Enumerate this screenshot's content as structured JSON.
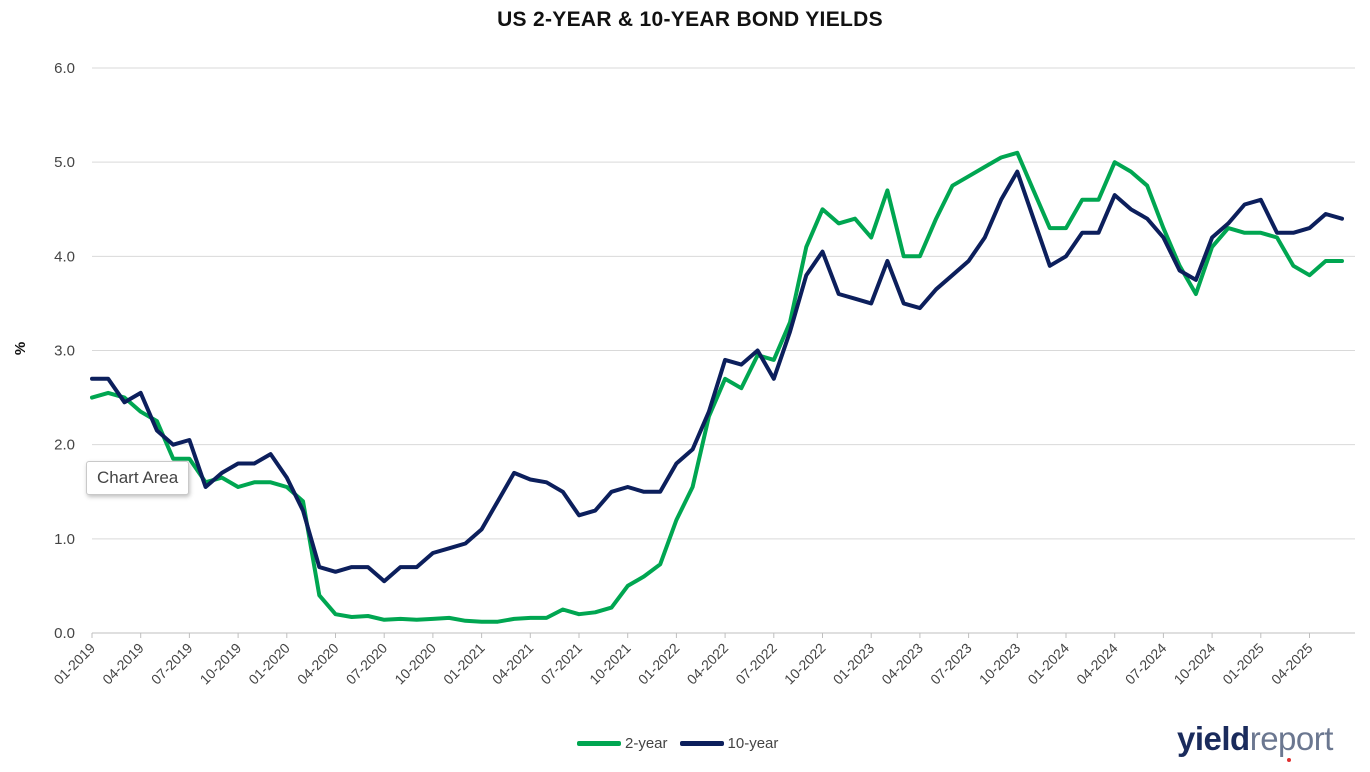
{
  "chart_data": {
    "type": "line",
    "title": "US 2-YEAR & 10-YEAR BOND YIELDS",
    "xlabel": "",
    "ylabel": "%",
    "ylim": [
      0,
      6
    ],
    "yticks": [
      "0.0",
      "1.0",
      "2.0",
      "3.0",
      "4.0",
      "5.0",
      "6.0"
    ],
    "xticks": [
      "01-2019",
      "04-2019",
      "07-2019",
      "10-2019",
      "01-2020",
      "04-2020",
      "07-2020",
      "10-2020",
      "01-2021",
      "04-2021",
      "07-2021",
      "10-2021",
      "01-2022",
      "04-2022",
      "07-2022",
      "10-2022",
      "01-2023",
      "04-2023",
      "07-2023",
      "10-2023",
      "01-2024",
      "04-2024",
      "07-2024",
      "10-2024",
      "01-2025",
      "04-2025"
    ],
    "grid": true,
    "legend_position": "bottom",
    "x": [
      "2019-01",
      "2019-02",
      "2019-03",
      "2019-04",
      "2019-05",
      "2019-06",
      "2019-07",
      "2019-08",
      "2019-09",
      "2019-10",
      "2019-11",
      "2019-12",
      "2020-01",
      "2020-02",
      "2020-03",
      "2020-04",
      "2020-05",
      "2020-06",
      "2020-07",
      "2020-08",
      "2020-09",
      "2020-10",
      "2020-11",
      "2020-12",
      "2021-01",
      "2021-02",
      "2021-03",
      "2021-04",
      "2021-05",
      "2021-06",
      "2021-07",
      "2021-08",
      "2021-09",
      "2021-10",
      "2021-11",
      "2021-12",
      "2022-01",
      "2022-02",
      "2022-03",
      "2022-04",
      "2022-05",
      "2022-06",
      "2022-07",
      "2022-08",
      "2022-09",
      "2022-10",
      "2022-11",
      "2022-12",
      "2023-01",
      "2023-02",
      "2023-03",
      "2023-04",
      "2023-05",
      "2023-06",
      "2023-07",
      "2023-08",
      "2023-09",
      "2023-10",
      "2023-11",
      "2023-12",
      "2024-01",
      "2024-02",
      "2024-03",
      "2024-04",
      "2024-05",
      "2024-06",
      "2024-07",
      "2024-08",
      "2024-09",
      "2024-10",
      "2024-11",
      "2024-12",
      "2025-01",
      "2025-02",
      "2025-03",
      "2025-04",
      "2025-05",
      "2025-06"
    ],
    "series": [
      {
        "name": "2-year",
        "color": "#00a651",
        "values": [
          2.5,
          2.55,
          2.5,
          2.35,
          2.25,
          1.85,
          1.85,
          1.6,
          1.65,
          1.55,
          1.6,
          1.6,
          1.55,
          1.4,
          0.4,
          0.2,
          0.17,
          0.18,
          0.14,
          0.15,
          0.14,
          0.15,
          0.16,
          0.13,
          0.12,
          0.12,
          0.15,
          0.16,
          0.16,
          0.25,
          0.2,
          0.22,
          0.27,
          0.5,
          0.6,
          0.73,
          1.2,
          1.55,
          2.3,
          2.7,
          2.6,
          2.95,
          2.9,
          3.3,
          4.1,
          4.5,
          4.35,
          4.4,
          4.2,
          4.7,
          4.0,
          4.0,
          4.4,
          4.75,
          4.85,
          4.95,
          5.05,
          5.1,
          4.7,
          4.3,
          4.3,
          4.6,
          4.6,
          5.0,
          4.9,
          4.75,
          4.3,
          3.9,
          3.6,
          4.1,
          4.3,
          4.25,
          4.25,
          4.2,
          3.9,
          3.8,
          3.95,
          3.95
        ]
      },
      {
        "name": "10-year",
        "color": "#0c1f5c",
        "values": [
          2.7,
          2.7,
          2.45,
          2.55,
          2.15,
          2.0,
          2.05,
          1.55,
          1.7,
          1.8,
          1.8,
          1.9,
          1.65,
          1.3,
          0.7,
          0.65,
          0.7,
          0.7,
          0.55,
          0.7,
          0.7,
          0.85,
          0.9,
          0.95,
          1.1,
          1.4,
          1.7,
          1.63,
          1.6,
          1.5,
          1.25,
          1.3,
          1.5,
          1.55,
          1.5,
          1.5,
          1.8,
          1.95,
          2.35,
          2.9,
          2.85,
          3.0,
          2.7,
          3.2,
          3.8,
          4.05,
          3.6,
          3.55,
          3.5,
          3.95,
          3.5,
          3.45,
          3.65,
          3.8,
          3.95,
          4.2,
          4.6,
          4.9,
          4.4,
          3.9,
          4.0,
          4.25,
          4.25,
          4.65,
          4.5,
          4.4,
          4.2,
          3.85,
          3.75,
          4.2,
          4.35,
          4.55,
          4.6,
          4.25,
          4.25,
          4.3,
          4.45,
          4.4
        ]
      }
    ]
  },
  "tooltip_text": "Chart Area",
  "logo": {
    "part1": "yield",
    "part2": "report"
  }
}
